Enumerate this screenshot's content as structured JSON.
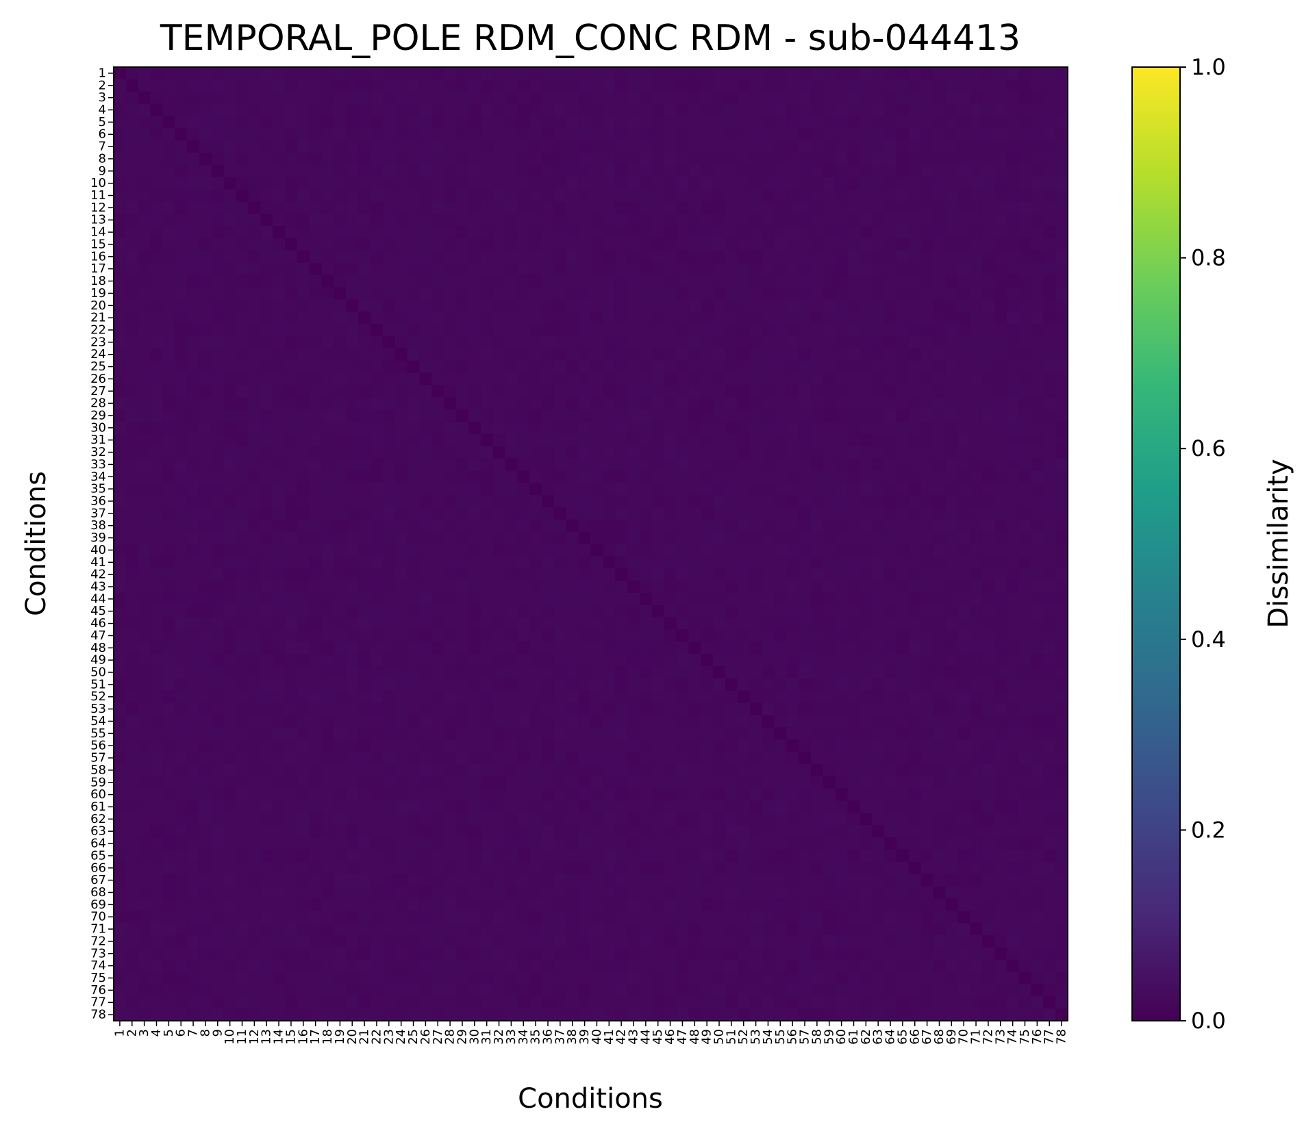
{
  "chart_data": {
    "type": "heatmap",
    "title": "TEMPORAL_POLE RDM_CONC RDM - sub-044413",
    "xlabel": "Conditions",
    "ylabel": "Conditions",
    "n": 78,
    "row_labels": [
      "1",
      "2",
      "3",
      "4",
      "5",
      "6",
      "7",
      "8",
      "9",
      "10",
      "11",
      "12",
      "13",
      "14",
      "15",
      "16",
      "17",
      "18",
      "19",
      "20",
      "21",
      "22",
      "23",
      "24",
      "25",
      "26",
      "27",
      "28",
      "29",
      "30",
      "31",
      "32",
      "33",
      "34",
      "35",
      "36",
      "37",
      "38",
      "39",
      "40",
      "41",
      "42",
      "43",
      "44",
      "45",
      "46",
      "47",
      "48",
      "49",
      "50",
      "51",
      "52",
      "53",
      "54",
      "55",
      "56",
      "57",
      "58",
      "59",
      "60",
      "61",
      "62",
      "63",
      "64",
      "65",
      "66",
      "67",
      "68",
      "69",
      "70",
      "71",
      "72",
      "73",
      "74",
      "75",
      "76",
      "77",
      "78"
    ],
    "col_labels": [
      "1",
      "2",
      "3",
      "4",
      "5",
      "6",
      "7",
      "8",
      "9",
      "10",
      "11",
      "12",
      "13",
      "14",
      "15",
      "16",
      "17",
      "18",
      "19",
      "20",
      "21",
      "22",
      "23",
      "24",
      "25",
      "26",
      "27",
      "28",
      "29",
      "30",
      "31",
      "32",
      "33",
      "34",
      "35",
      "36",
      "37",
      "38",
      "39",
      "40",
      "41",
      "42",
      "43",
      "44",
      "45",
      "46",
      "47",
      "48",
      "49",
      "50",
      "51",
      "52",
      "53",
      "54",
      "55",
      "56",
      "57",
      "58",
      "59",
      "60",
      "61",
      "62",
      "63",
      "64",
      "65",
      "66",
      "67",
      "68",
      "69",
      "70",
      "71",
      "72",
      "73",
      "74",
      "75",
      "76",
      "77",
      "78"
    ],
    "value_range": [
      0.0,
      1.0
    ],
    "diagonal_value": 0.0,
    "off_diagonal_approx": 0.02,
    "colormap": "viridis",
    "colorbar": {
      "label": "Dissimilarity",
      "ticks": [
        "0.0",
        "0.2",
        "0.4",
        "0.6",
        "0.8",
        "1.0"
      ],
      "tick_values": [
        0.0,
        0.2,
        0.4,
        0.6,
        0.8,
        1.0
      ]
    },
    "grid": false
  },
  "colors": {
    "viridis_stops": [
      "#440154",
      "#482878",
      "#3e4989",
      "#31688e",
      "#26828e",
      "#1f9e89",
      "#35b779",
      "#6ece58",
      "#b5de2b",
      "#fde725"
    ]
  }
}
